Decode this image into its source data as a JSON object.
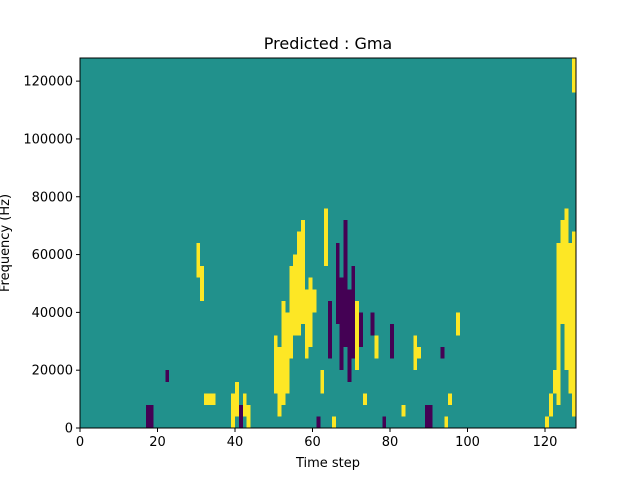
{
  "chart_data": {
    "type": "heatmap",
    "title": "Predicted : Gma",
    "xlabel": "Time step",
    "ylabel": "Frequency (Hz)",
    "x_range": [
      0,
      128
    ],
    "y_range": [
      0,
      128000
    ],
    "x_ticks": [
      0,
      20,
      40,
      60,
      80,
      100,
      120
    ],
    "y_ticks": [
      0,
      20000,
      40000,
      60000,
      80000,
      100000,
      120000
    ],
    "x_tick_labels": [
      "0",
      "20",
      "40",
      "60",
      "80",
      "100",
      "120"
    ],
    "y_tick_labels": [
      "0",
      "20000",
      "40000",
      "60000",
      "80000",
      "100000",
      "120000"
    ],
    "grid": false,
    "colormap": "viridis",
    "colors": {
      "background": "#21918c",
      "high": "#fde725",
      "low": "#440154"
    },
    "value_levels": [
      -1,
      0,
      1
    ],
    "background_value": 0,
    "cell_width_timesteps": 1,
    "cell_height_hz": 4000,
    "marks": [
      {
        "t": 17,
        "f0": 0,
        "f1": 8000,
        "v": -1
      },
      {
        "t": 18,
        "f0": 0,
        "f1": 8000,
        "v": -1
      },
      {
        "t": 22,
        "f0": 16000,
        "f1": 20000,
        "v": -1
      },
      {
        "t": 30,
        "f0": 52000,
        "f1": 64000,
        "v": 1
      },
      {
        "t": 31,
        "f0": 44000,
        "f1": 56000,
        "v": 1
      },
      {
        "t": 32,
        "f0": 8000,
        "f1": 12000,
        "v": 1
      },
      {
        "t": 33,
        "f0": 8000,
        "f1": 12000,
        "v": 1
      },
      {
        "t": 34,
        "f0": 8000,
        "f1": 12000,
        "v": 1
      },
      {
        "t": 39,
        "f0": 0,
        "f1": 12000,
        "v": 1
      },
      {
        "t": 40,
        "f0": 4000,
        "f1": 16000,
        "v": 1
      },
      {
        "t": 41,
        "f0": 0,
        "f1": 8000,
        "v": -1
      },
      {
        "t": 42,
        "f0": 4000,
        "f1": 12000,
        "v": 1
      },
      {
        "t": 43,
        "f0": 0,
        "f1": 8000,
        "v": 1
      },
      {
        "t": 50,
        "f0": 12000,
        "f1": 32000,
        "v": 1
      },
      {
        "t": 51,
        "f0": 4000,
        "f1": 28000,
        "v": 1
      },
      {
        "t": 52,
        "f0": 8000,
        "f1": 44000,
        "v": 1
      },
      {
        "t": 53,
        "f0": 12000,
        "f1": 40000,
        "v": 1
      },
      {
        "t": 54,
        "f0": 24000,
        "f1": 56000,
        "v": 1
      },
      {
        "t": 55,
        "f0": 32000,
        "f1": 60000,
        "v": 1
      },
      {
        "t": 56,
        "f0": 32000,
        "f1": 68000,
        "v": 1
      },
      {
        "t": 57,
        "f0": 36000,
        "f1": 72000,
        "v": 1
      },
      {
        "t": 58,
        "f0": 24000,
        "f1": 48000,
        "v": 1
      },
      {
        "t": 59,
        "f0": 28000,
        "f1": 52000,
        "v": 1
      },
      {
        "t": 60,
        "f0": 40000,
        "f1": 48000,
        "v": 1
      },
      {
        "t": 61,
        "f0": 0,
        "f1": 4000,
        "v": -1
      },
      {
        "t": 62,
        "f0": 12000,
        "f1": 20000,
        "v": 1
      },
      {
        "t": 63,
        "f0": 56000,
        "f1": 76000,
        "v": 1
      },
      {
        "t": 64,
        "f0": 24000,
        "f1": 44000,
        "v": -1
      },
      {
        "t": 65,
        "f0": 0,
        "f1": 4000,
        "v": 1
      },
      {
        "t": 66,
        "f0": 36000,
        "f1": 64000,
        "v": -1
      },
      {
        "t": 67,
        "f0": 20000,
        "f1": 52000,
        "v": -1
      },
      {
        "t": 68,
        "f0": 28000,
        "f1": 72000,
        "v": -1
      },
      {
        "t": 69,
        "f0": 16000,
        "f1": 48000,
        "v": -1
      },
      {
        "t": 70,
        "f0": 24000,
        "f1": 56000,
        "v": -1
      },
      {
        "t": 71,
        "f0": 20000,
        "f1": 44000,
        "v": 1
      },
      {
        "t": 72,
        "f0": 28000,
        "f1": 40000,
        "v": -1
      },
      {
        "t": 73,
        "f0": 8000,
        "f1": 12000,
        "v": 1
      },
      {
        "t": 75,
        "f0": 32000,
        "f1": 40000,
        "v": -1
      },
      {
        "t": 76,
        "f0": 24000,
        "f1": 32000,
        "v": 1
      },
      {
        "t": 78,
        "f0": 0,
        "f1": 4000,
        "v": -1
      },
      {
        "t": 80,
        "f0": 24000,
        "f1": 36000,
        "v": -1
      },
      {
        "t": 83,
        "f0": 4000,
        "f1": 8000,
        "v": 1
      },
      {
        "t": 86,
        "f0": 20000,
        "f1": 32000,
        "v": 1
      },
      {
        "t": 87,
        "f0": 24000,
        "f1": 28000,
        "v": 1
      },
      {
        "t": 89,
        "f0": 0,
        "f1": 8000,
        "v": -1
      },
      {
        "t": 90,
        "f0": 0,
        "f1": 8000,
        "v": -1
      },
      {
        "t": 93,
        "f0": 24000,
        "f1": 28000,
        "v": -1
      },
      {
        "t": 94,
        "f0": 0,
        "f1": 4000,
        "v": 1
      },
      {
        "t": 95,
        "f0": 8000,
        "f1": 12000,
        "v": 1
      },
      {
        "t": 97,
        "f0": 32000,
        "f1": 40000,
        "v": 1
      },
      {
        "t": 120,
        "f0": 0,
        "f1": 4000,
        "v": 1
      },
      {
        "t": 121,
        "f0": 4000,
        "f1": 12000,
        "v": 1
      },
      {
        "t": 122,
        "f0": 12000,
        "f1": 20000,
        "v": 1
      },
      {
        "t": 123,
        "f0": 8000,
        "f1": 64000,
        "v": 1
      },
      {
        "t": 124,
        "f0": 36000,
        "f1": 72000,
        "v": 1
      },
      {
        "t": 125,
        "f0": 20000,
        "f1": 76000,
        "v": 1
      },
      {
        "t": 126,
        "f0": 12000,
        "f1": 64000,
        "v": 1
      },
      {
        "t": 127,
        "f0": 4000,
        "f1": 68000,
        "v": 1
      },
      {
        "t": 127,
        "f0": 116000,
        "f1": 128000,
        "v": 1
      }
    ]
  }
}
